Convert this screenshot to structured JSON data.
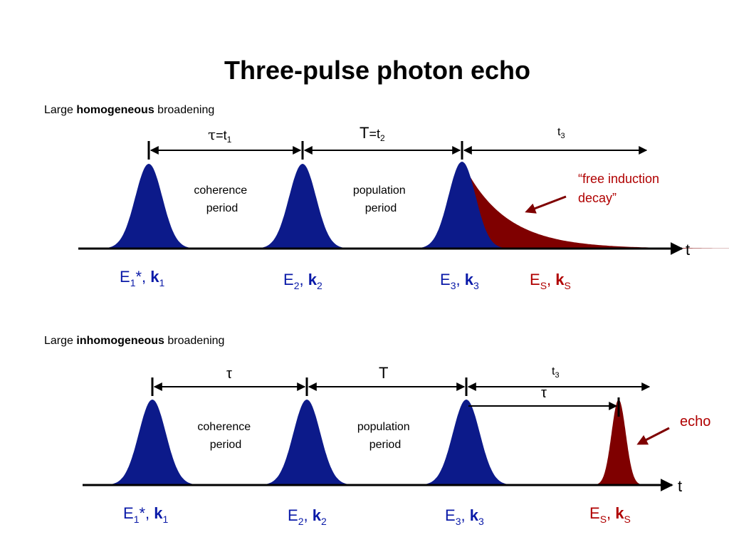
{
  "title": "Three-pulse photon echo",
  "colors": {
    "pulse": "#0c1a8a",
    "signal": "#7f0000",
    "label_blue": "#0a1aa8",
    "label_red": "#b00000",
    "black": "#000000"
  },
  "top": {
    "caption": {
      "pre": "Large ",
      "bold": "homogeneous",
      "post": " broadening"
    },
    "interval1": {
      "sym": "τ",
      "eq": "=t",
      "sub": "1"
    },
    "interval2": {
      "sym": "T",
      "eq": "=t",
      "sub": "2"
    },
    "interval3": {
      "sym": "t",
      "sub": "3"
    },
    "region1": [
      "coherence",
      "period"
    ],
    "region2": [
      "population",
      "period"
    ],
    "annotation": [
      "“free induction",
      "decay”"
    ],
    "axis": "t",
    "fields": [
      {
        "E": "E",
        "Esub": "1",
        "Estar": "*",
        "k": "k",
        "ksub": "1"
      },
      {
        "E": "E",
        "Esub": "2",
        "Estar": "",
        "k": "k",
        "ksub": "2"
      },
      {
        "E": "E",
        "Esub": "3",
        "Estar": "",
        "k": "k",
        "ksub": "3"
      },
      {
        "E": "E",
        "Esub": "S",
        "Estar": "",
        "k": "k",
        "ksub": "S"
      }
    ]
  },
  "bottom": {
    "caption": {
      "pre": "Large ",
      "bold": "inhomogeneous",
      "post": " broadening"
    },
    "interval1": {
      "sym": "τ"
    },
    "interval2": {
      "sym": "T"
    },
    "interval3": {
      "sym": "t",
      "sub": "3"
    },
    "echo_delay": {
      "sym": "τ"
    },
    "region1": [
      "coherence",
      "period"
    ],
    "region2": [
      "population",
      "period"
    ],
    "annotation": "echo",
    "axis": "t",
    "fields": [
      {
        "E": "E",
        "Esub": "1",
        "Estar": "*",
        "k": "k",
        "ksub": "1"
      },
      {
        "E": "E",
        "Esub": "2",
        "Estar": "",
        "k": "k",
        "ksub": "2"
      },
      {
        "E": "E",
        "Esub": "3",
        "Estar": "",
        "k": "k",
        "ksub": "3"
      },
      {
        "E": "E",
        "Esub": "S",
        "Estar": "",
        "k": "k",
        "ksub": "S"
      }
    ]
  }
}
